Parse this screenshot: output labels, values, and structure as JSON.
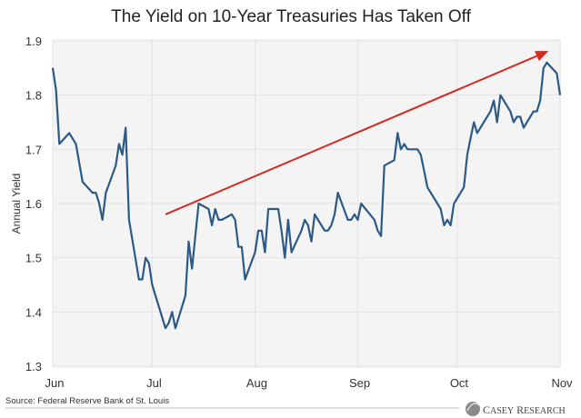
{
  "chart_data": {
    "type": "line",
    "title": "The Yield on 10-Year Treasuries Has Taken Off",
    "xlabel": "",
    "ylabel": "Annual Yield",
    "ylim": [
      1.3,
      1.9
    ],
    "yticks": [
      "1.3",
      "1.4",
      "1.5",
      "1.6",
      "1.7",
      "1.8",
      "1.9"
    ],
    "xlim": [
      "06-01",
      "11-01"
    ],
    "xticks": [
      {
        "date": "06-01",
        "label": "Jun"
      },
      {
        "date": "07-01",
        "label": "Jul"
      },
      {
        "date": "08-01",
        "label": "Aug"
      },
      {
        "date": "09-01",
        "label": "Sep"
      },
      {
        "date": "10-01",
        "label": "Oct"
      },
      {
        "date": "11-01",
        "label": "Nov"
      }
    ],
    "grid": true,
    "series_color": "#2b5a86",
    "series": [
      {
        "x": [
          "06-01",
          "06-02",
          "06-03",
          "06-06",
          "06-08",
          "06-10",
          "06-13",
          "06-14",
          "06-15",
          "06-16",
          "06-17",
          "06-20",
          "06-21",
          "06-22",
          "06-23",
          "06-24",
          "06-27",
          "06-28",
          "06-29",
          "06-30",
          "07-01",
          "07-05",
          "07-06",
          "07-07",
          "07-08",
          "07-11",
          "07-12",
          "07-13",
          "07-14",
          "07-15",
          "07-18",
          "07-19",
          "07-20",
          "07-21",
          "07-22",
          "07-25",
          "07-26",
          "07-27",
          "07-28",
          "07-29",
          "08-01",
          "08-02",
          "08-03",
          "08-04",
          "08-05",
          "08-08",
          "08-09",
          "08-10",
          "08-11",
          "08-12",
          "08-15",
          "08-16",
          "08-17",
          "08-18",
          "08-19",
          "08-22",
          "08-23",
          "08-24",
          "08-25",
          "08-26",
          "08-29",
          "08-30",
          "08-31",
          "09-01",
          "09-02",
          "09-06",
          "09-07",
          "09-08",
          "09-09",
          "09-12",
          "09-13",
          "09-14",
          "09-15",
          "09-16",
          "09-19",
          "09-20",
          "09-21",
          "09-22",
          "09-26",
          "09-27",
          "09-28",
          "09-29",
          "09-30",
          "10-03",
          "10-04",
          "10-05",
          "10-06",
          "10-07",
          "10-11",
          "10-12",
          "10-13",
          "10-14",
          "10-17",
          "10-18",
          "10-19",
          "10-20",
          "10-21",
          "10-24",
          "10-25",
          "10-26",
          "10-27",
          "10-28",
          "10-31",
          "11-01"
        ],
        "values": [
          1.85,
          1.81,
          1.71,
          1.73,
          1.71,
          1.64,
          1.62,
          1.62,
          1.6,
          1.57,
          1.62,
          1.67,
          1.71,
          1.69,
          1.74,
          1.57,
          1.46,
          1.46,
          1.5,
          1.49,
          1.45,
          1.37,
          1.38,
          1.4,
          1.37,
          1.43,
          1.53,
          1.48,
          1.54,
          1.6,
          1.59,
          1.56,
          1.59,
          1.57,
          1.57,
          1.58,
          1.57,
          1.52,
          1.52,
          1.46,
          1.51,
          1.55,
          1.55,
          1.51,
          1.59,
          1.59,
          1.55,
          1.5,
          1.57,
          1.51,
          1.55,
          1.57,
          1.56,
          1.53,
          1.58,
          1.55,
          1.55,
          1.56,
          1.58,
          1.62,
          1.57,
          1.57,
          1.58,
          1.57,
          1.6,
          1.57,
          1.55,
          1.54,
          1.67,
          1.68,
          1.73,
          1.7,
          1.71,
          1.7,
          1.7,
          1.69,
          1.66,
          1.63,
          1.59,
          1.56,
          1.57,
          1.56,
          1.6,
          1.63,
          1.69,
          1.72,
          1.75,
          1.73,
          1.77,
          1.79,
          1.75,
          1.8,
          1.77,
          1.75,
          1.76,
          1.76,
          1.74,
          1.77,
          1.77,
          1.79,
          1.85,
          1.86,
          1.84,
          1.8
        ]
      }
    ],
    "annotation_arrow": {
      "color": "#d42a20",
      "from": {
        "date": "07-05",
        "value": 1.58
      },
      "to": {
        "date": "10-28",
        "value": 1.88
      }
    },
    "source": "Source: Federal Reserve Bank of St. Louis",
    "logo_text": "Casey Research"
  }
}
